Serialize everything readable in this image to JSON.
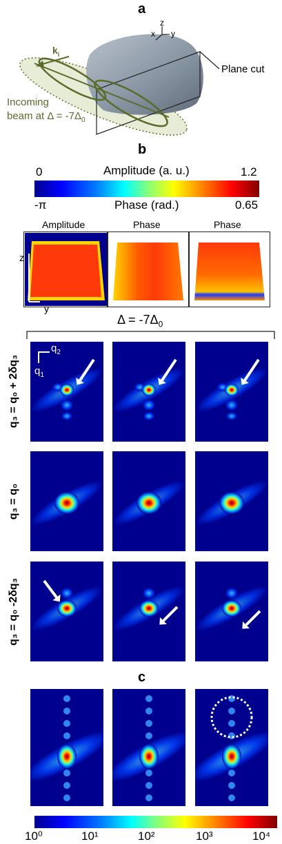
{
  "panel_a": {
    "label": "a",
    "axes": {
      "x": "x",
      "y": "y",
      "z": "z"
    },
    "plane_cut": "Plane cut",
    "ki": "k",
    "ki_sub": "i",
    "beam_line1": "Incoming",
    "beam_line2": "beam at Δ = -7Δ",
    "beam_sub": "0"
  },
  "panel_b": {
    "label": "b",
    "colorbar": {
      "amp_min": "0",
      "amp_title": "Amplitude (a. u.)",
      "amp_max": "1.2",
      "phase_min": "-π",
      "phase_title": "Phase (rad.)",
      "phase_max": "0.65"
    },
    "maps": [
      "Amplitude",
      "Phase",
      "Phase"
    ],
    "axis_z": "z",
    "axis_y": "y",
    "delta_label": "Δ = -7Δ",
    "delta_sub": "0",
    "q_axes": {
      "q2": "q",
      "q2_sub": "2",
      "q1": "q",
      "q1_sub": "1"
    },
    "rows": [
      {
        "label": "q₃ = q₀ + 2δq₃"
      },
      {
        "label": "q₃ = q₀"
      },
      {
        "label": "q₃ = q₀ -2δq₃"
      }
    ]
  },
  "panel_c": {
    "label": "c",
    "colorbar_ticks": [
      "10⁰",
      "10¹",
      "10²",
      "10³",
      "10⁴"
    ]
  },
  "colors": {
    "background_map": "#00008f",
    "beam_green": "#5a6b2a",
    "crystal": "#8e9aa8"
  }
}
